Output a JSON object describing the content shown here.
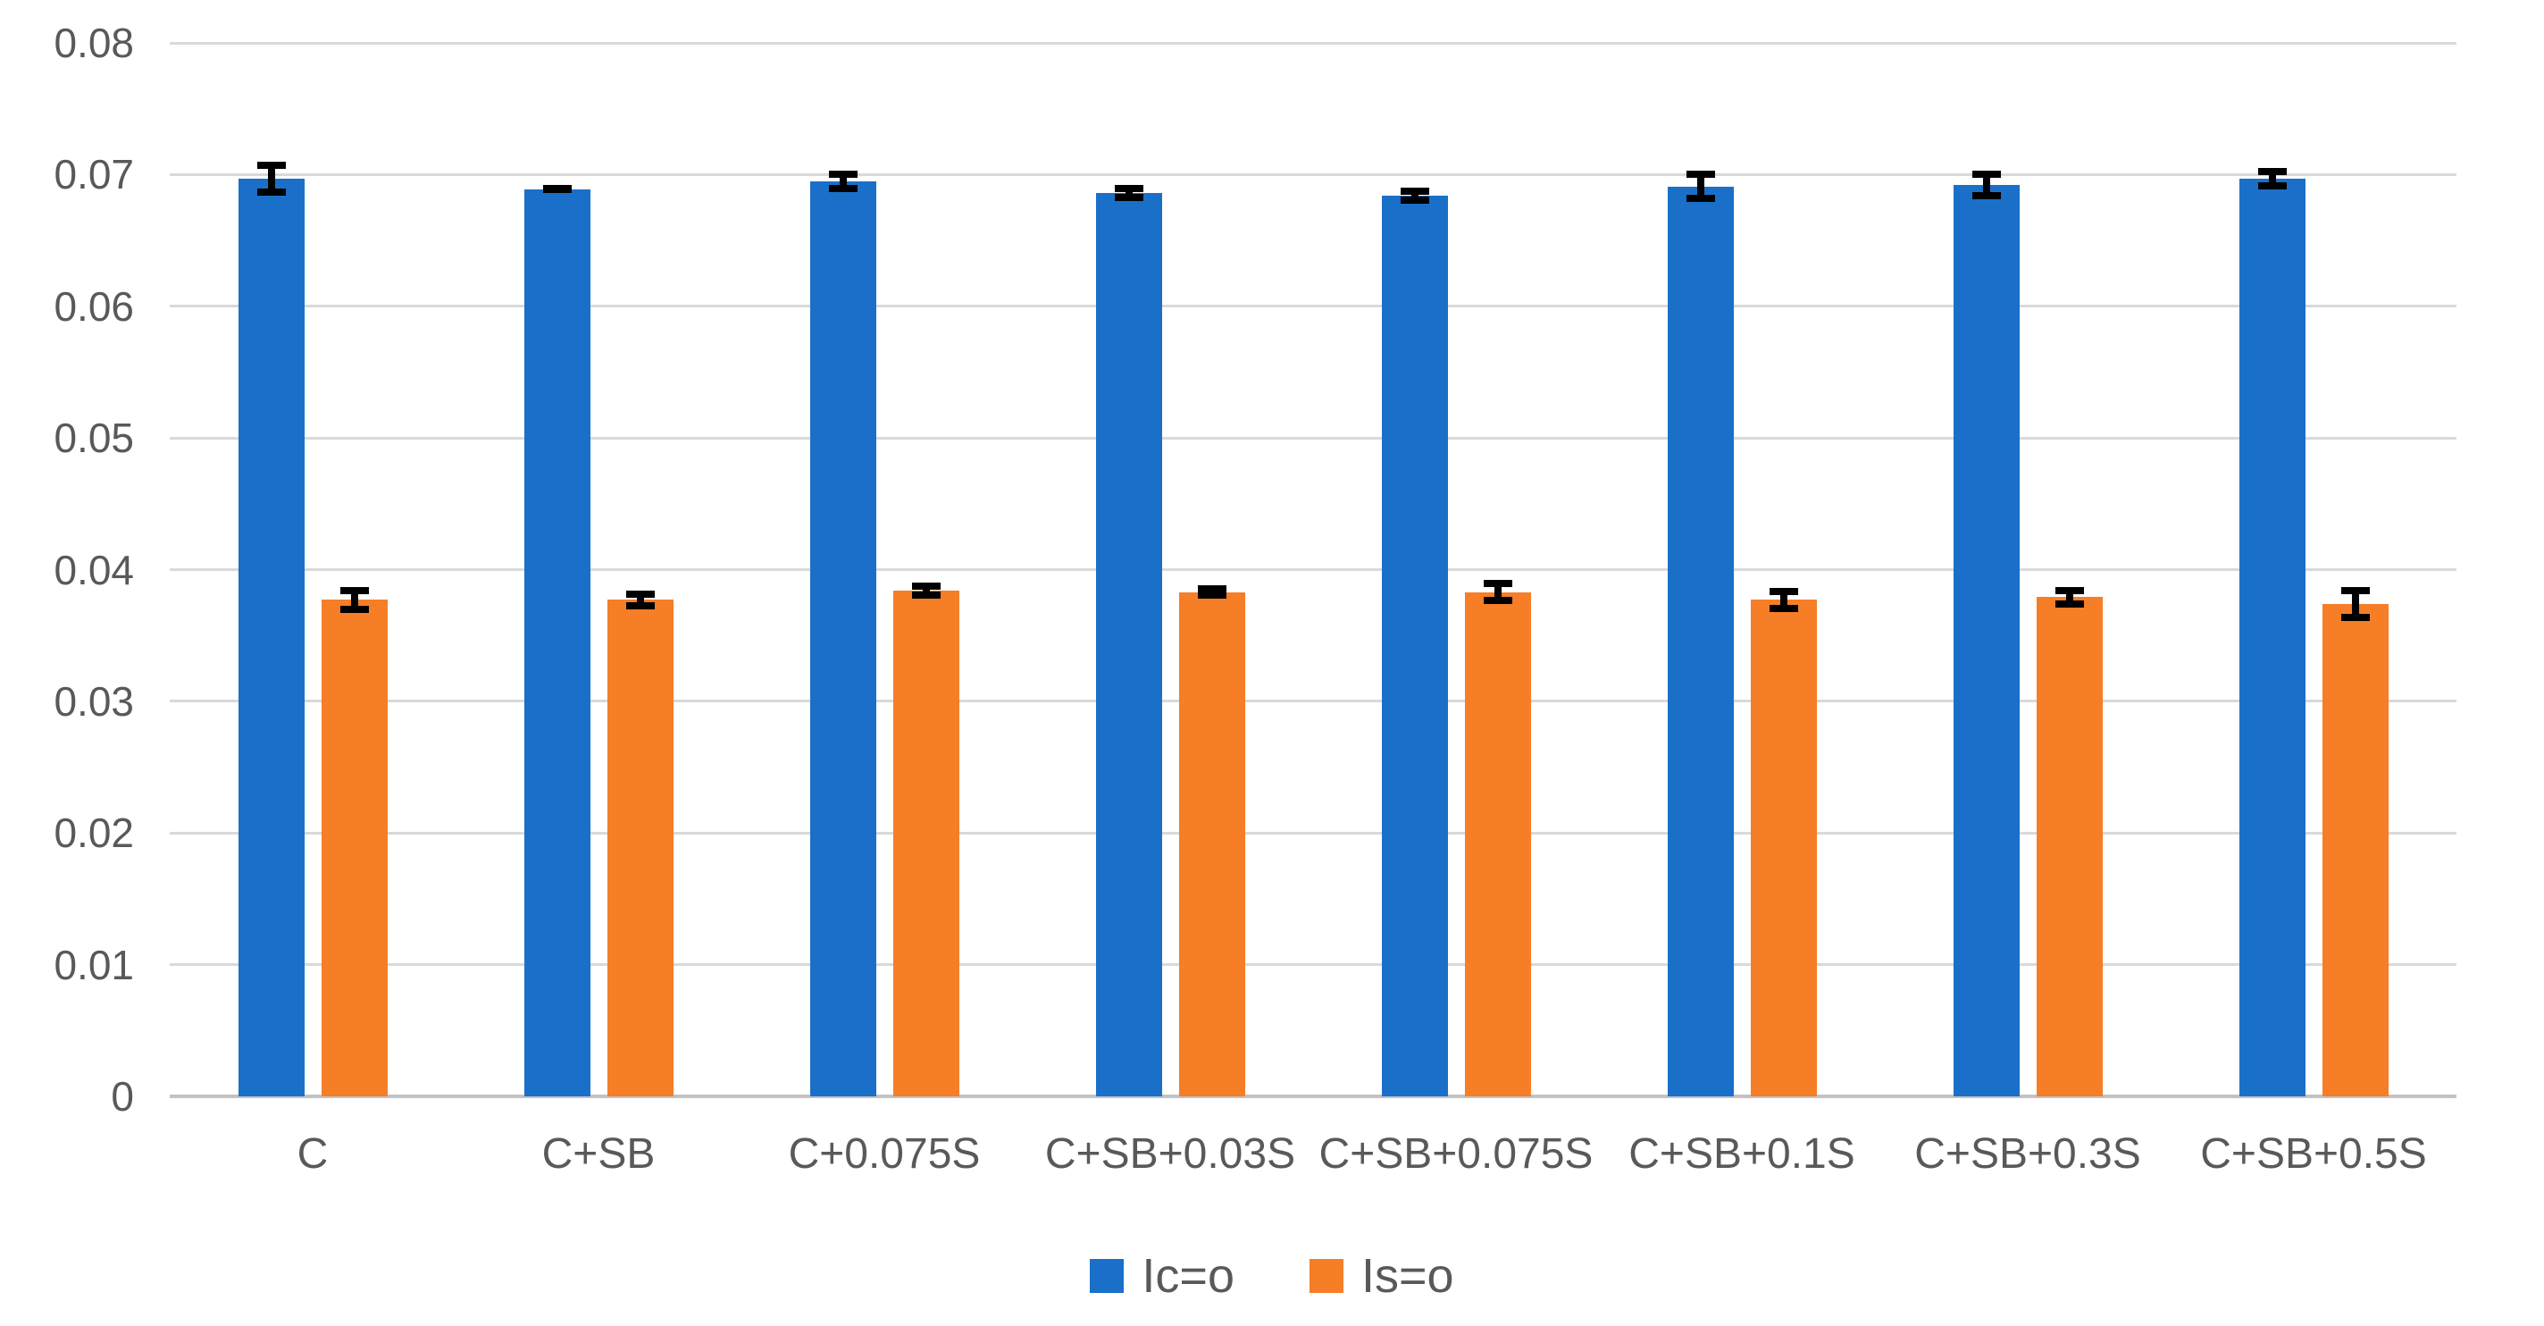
{
  "chart_data": {
    "type": "bar",
    "title": "",
    "xlabel": "",
    "ylabel": "",
    "categories": [
      "C",
      "C+SB",
      "C+0.075S",
      "C+SB+0.03S",
      "C+SB+0.075S",
      "C+SB+0.1S",
      "C+SB+0.3S",
      "C+SB+0.5S"
    ],
    "series": [
      {
        "name": "Ic=o",
        "color": "#1a70c8",
        "values": [
          0.0697,
          0.0689,
          0.0695,
          0.0686,
          0.0684,
          0.0691,
          0.0692,
          0.0697
        ],
        "errors": [
          0.0013,
          0.0003,
          0.0008,
          0.0006,
          0.0006,
          0.0012,
          0.0011,
          0.0008
        ]
      },
      {
        "name": "Is=o",
        "color": "#f57e27",
        "values": [
          0.0377,
          0.0377,
          0.0384,
          0.0383,
          0.0383,
          0.0377,
          0.0379,
          0.0374
        ],
        "errors": [
          0.001,
          0.0007,
          0.0006,
          0.0005,
          0.0009,
          0.0009,
          0.0008,
          0.0013
        ]
      }
    ],
    "ylim": [
      0,
      0.08
    ],
    "yticks": [
      {
        "value": 0.08,
        "label": "0.08"
      },
      {
        "value": 0.07,
        "label": "0.07"
      },
      {
        "value": 0.06,
        "label": "0.06"
      },
      {
        "value": 0.05,
        "label": "0.05"
      },
      {
        "value": 0.04,
        "label": "0.04"
      },
      {
        "value": 0.03,
        "label": "0.03"
      },
      {
        "value": 0.02,
        "label": "0.02"
      },
      {
        "value": 0.01,
        "label": "0.01"
      },
      {
        "value": 0,
        "label": "0"
      }
    ],
    "grid": true,
    "legend_position": "bottom",
    "error_bar_color": "#000000",
    "gridline_color": "#d9d9d9",
    "axis_line_color": "#c3c3c3",
    "tick_text_color": "#595959"
  }
}
